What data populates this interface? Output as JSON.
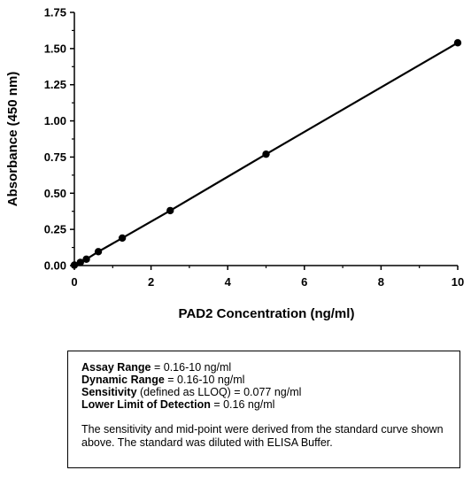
{
  "chart_data": {
    "type": "line",
    "xlabel": "PAD2 Concentration (ng/ml)",
    "ylabel": "Absorbance (450 nm)",
    "xlim": [
      0,
      10
    ],
    "ylim": [
      0,
      1.75
    ],
    "xticks": [
      "0",
      "2",
      "4",
      "6",
      "8",
      "10"
    ],
    "yticks": [
      "0.00",
      "0.25",
      "0.50",
      "0.75",
      "1.00",
      "1.25",
      "1.50",
      "1.75"
    ],
    "grid": false,
    "series": [
      {
        "x": [
          0,
          0.156,
          0.3125,
          0.625,
          1.25,
          2.5,
          5,
          10
        ],
        "y": [
          0.003,
          0.022,
          0.044,
          0.096,
          0.19,
          0.38,
          0.77,
          1.54
        ]
      }
    ]
  },
  "info": {
    "assay_range_label": "Assay Range",
    "assay_range_value": " = 0.16-10 ng/ml",
    "dynamic_range_label": "Dynamic Range",
    "dynamic_range_value": " = 0.16-10 ng/ml",
    "sensitivity_label": "Sensitivity",
    "sensitivity_value": " (defined as LLOQ) = 0.077 ng/ml",
    "lld_label": "Lower Limit of Detection",
    "lld_value": " = 0.16 ng/ml",
    "note": "The sensitivity and mid-point were derived from the standard curve shown above. The standard was diluted with ELISA Buffer."
  }
}
